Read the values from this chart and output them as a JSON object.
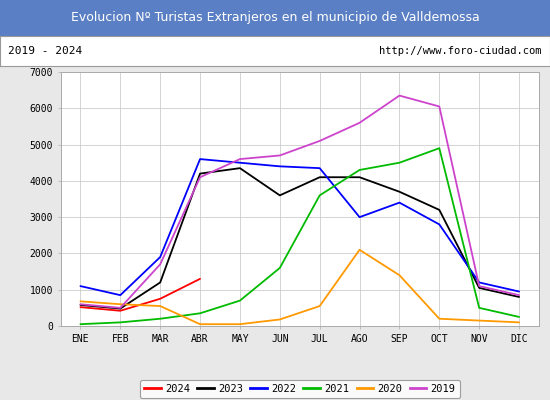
{
  "title": "Evolucion Nº Turistas Extranjeros en el municipio de Valldemossa",
  "subtitle_left": "2019 - 2024",
  "subtitle_right": "http://www.foro-ciudad.com",
  "title_bg_color": "#5b7fc4",
  "title_text_color": "#ffffff",
  "months": [
    "ENE",
    "FEB",
    "MAR",
    "ABR",
    "MAY",
    "JUN",
    "JUL",
    "AGO",
    "SEP",
    "OCT",
    "NOV",
    "DIC"
  ],
  "ylim": [
    0,
    7000
  ],
  "yticks": [
    0,
    1000,
    2000,
    3000,
    4000,
    5000,
    6000,
    7000
  ],
  "series": {
    "2024": {
      "color": "#ff0000",
      "data": [
        520,
        420,
        750,
        1300,
        null,
        null,
        null,
        null,
        null,
        null,
        null,
        null
      ]
    },
    "2023": {
      "color": "#000000",
      "data": [
        580,
        480,
        1200,
        4200,
        4350,
        3600,
        4100,
        4100,
        3700,
        3200,
        1050,
        800
      ]
    },
    "2022": {
      "color": "#0000ff",
      "data": [
        1100,
        850,
        1900,
        4600,
        4500,
        4400,
        4350,
        3000,
        3400,
        2800,
        1200,
        950
      ]
    },
    "2021": {
      "color": "#00bb00",
      "data": [
        50,
        100,
        200,
        350,
        700,
        1600,
        3600,
        4300,
        4500,
        4900,
        500,
        250
      ]
    },
    "2020": {
      "color": "#ff9900",
      "data": [
        680,
        600,
        550,
        50,
        50,
        180,
        550,
        2100,
        1400,
        200,
        150,
        100
      ]
    },
    "2019": {
      "color": "#cc44cc",
      "data": [
        600,
        500,
        1700,
        4100,
        4600,
        4700,
        5100,
        5600,
        6350,
        6050,
        1100,
        850
      ]
    }
  },
  "legend_order": [
    "2024",
    "2023",
    "2022",
    "2021",
    "2020",
    "2019"
  ],
  "bg_color": "#e8e8e8",
  "plot_bg_color": "#ffffff",
  "grid_color": "#cccccc",
  "subtitle_bg": "#ffffff"
}
